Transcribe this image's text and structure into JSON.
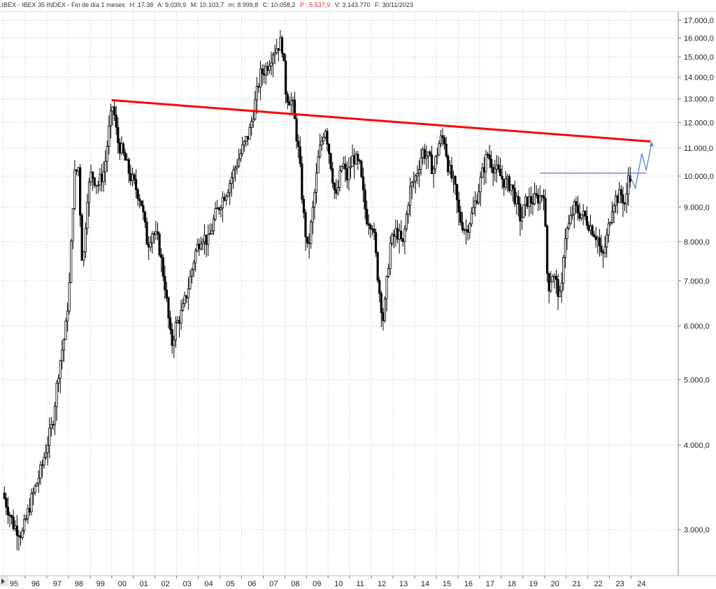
{
  "header": {
    "symbol": ".IBEX - IBEX 35 INDEX - Fin de día 1 meses",
    "hora": "H: 17:38",
    "apertura": "A: 9.039,9",
    "maximo": "M: 10.103,7",
    "minimo": "m: 8.999,8",
    "cierre": "C: 10.058,2",
    "p": "P : 5.537,9",
    "volumen": "V: 3.143.770",
    "fecha": "F: 30/11/2023"
  },
  "colors": {
    "grid": "#bdbdbd",
    "candle": "#000000",
    "trendline": "#ff0000",
    "resistance": "#3344cc",
    "projection": "#5588cc",
    "p_value": "#e03030"
  },
  "chart_data": {
    "type": "candlestick",
    "title": ".IBEX - IBEX 35 INDEX - Fin de día 1 meses",
    "scale": "log",
    "ylim": [
      2700,
      17300
    ],
    "y_ticks": [
      {
        "v": 3000,
        "label": "3.000,0"
      },
      {
        "v": 4000,
        "label": "4.000,0"
      },
      {
        "v": 5000,
        "label": "5.000,0"
      },
      {
        "v": 6000,
        "label": "6.000,0"
      },
      {
        "v": 7000,
        "label": "7.000,0"
      },
      {
        "v": 8000,
        "label": "8.000,0"
      },
      {
        "v": 9000,
        "label": "9.000,0"
      },
      {
        "v": 10000,
        "label": "10.000,0"
      },
      {
        "v": 11000,
        "label": "11.000,0"
      },
      {
        "v": 12000,
        "label": "12.000,0"
      },
      {
        "v": 13000,
        "label": "13.000,0"
      },
      {
        "v": 14000,
        "label": "14.000,0"
      },
      {
        "v": 15000,
        "label": "15.000,0"
      },
      {
        "v": 16000,
        "label": "16.000,0"
      },
      {
        "v": 17000,
        "label": "17.000,0"
      }
    ],
    "x_labels": [
      "95",
      "96",
      "97",
      "98",
      "99",
      "00",
      "01",
      "02",
      "03",
      "04",
      "05",
      "06",
      "07",
      "08",
      "09",
      "10",
      "11",
      "12",
      "13",
      "14",
      "15",
      "16",
      "17",
      "18",
      "19",
      "20",
      "21",
      "22",
      "23",
      "24"
    ],
    "x_start_year": 1995,
    "x_end_year": 2025,
    "grid": true,
    "series_path": [
      [
        1995.0,
        3400
      ],
      [
        1995.5,
        3050
      ],
      [
        1995.9,
        2950
      ],
      [
        1996.3,
        3300
      ],
      [
        1996.8,
        3700
      ],
      [
        1997.0,
        3950
      ],
      [
        1997.3,
        4300
      ],
      [
        1997.6,
        5200
      ],
      [
        1997.9,
        5900
      ],
      [
        1998.1,
        7000
      ],
      [
        1998.3,
        10000
      ],
      [
        1998.5,
        10300
      ],
      [
        1998.7,
        7200
      ],
      [
        1998.9,
        9300
      ],
      [
        1999.1,
        10100
      ],
      [
        1999.4,
        9700
      ],
      [
        1999.7,
        10200
      ],
      [
        1999.9,
        11600
      ],
      [
        2000.1,
        12800
      ],
      [
        2000.3,
        11300
      ],
      [
        2000.6,
        10700
      ],
      [
        2000.9,
        10000
      ],
      [
        2001.1,
        9700
      ],
      [
        2001.4,
        9200
      ],
      [
        2001.7,
        7900
      ],
      [
        2001.9,
        8300
      ],
      [
        2002.2,
        8000
      ],
      [
        2002.5,
        6900
      ],
      [
        2002.8,
        5600
      ],
      [
        2003.0,
        6000
      ],
      [
        2003.3,
        6300
      ],
      [
        2003.6,
        6900
      ],
      [
        2003.9,
        7700
      ],
      [
        2004.2,
        8200
      ],
      [
        2004.5,
        8000
      ],
      [
        2004.8,
        8700
      ],
      [
        2005.1,
        9200
      ],
      [
        2005.4,
        9600
      ],
      [
        2005.8,
        10400
      ],
      [
        2006.1,
        11000
      ],
      [
        2006.4,
        11600
      ],
      [
        2006.7,
        13000
      ],
      [
        2006.9,
        14100
      ],
      [
        2007.2,
        14500
      ],
      [
        2007.5,
        15300
      ],
      [
        2007.8,
        15700
      ],
      [
        2007.9,
        15800
      ],
      [
        2008.1,
        13200
      ],
      [
        2008.4,
        12800
      ],
      [
        2008.7,
        10700
      ],
      [
        2008.9,
        8800
      ],
      [
        2009.1,
        7700
      ],
      [
        2009.3,
        8700
      ],
      [
        2009.6,
        10700
      ],
      [
        2009.9,
        11900
      ],
      [
        2010.1,
        10800
      ],
      [
        2010.4,
        9200
      ],
      [
        2010.7,
        10500
      ],
      [
        2010.9,
        9900
      ],
      [
        2011.2,
        10700
      ],
      [
        2011.5,
        10300
      ],
      [
        2011.8,
        8700
      ],
      [
        2012.1,
        8500
      ],
      [
        2012.4,
        6800
      ],
      [
        2012.6,
        6100
      ],
      [
        2012.9,
        7900
      ],
      [
        2013.2,
        8300
      ],
      [
        2013.5,
        7900
      ],
      [
        2013.8,
        9500
      ],
      [
        2014.1,
        10000
      ],
      [
        2014.4,
        10900
      ],
      [
        2014.7,
        10600
      ],
      [
        2014.9,
        10200
      ],
      [
        2015.2,
        11300
      ],
      [
        2015.4,
        11400
      ],
      [
        2015.6,
        10300
      ],
      [
        2015.9,
        9600
      ],
      [
        2016.1,
        8700
      ],
      [
        2016.4,
        8300
      ],
      [
        2016.7,
        8800
      ],
      [
        2016.9,
        9300
      ],
      [
        2017.2,
        10200
      ],
      [
        2017.4,
        10800
      ],
      [
        2017.7,
        10300
      ],
      [
        2017.9,
        10100
      ],
      [
        2018.2,
        9800
      ],
      [
        2018.5,
        9700
      ],
      [
        2018.8,
        9000
      ],
      [
        2018.95,
        8600
      ],
      [
        2019.2,
        9200
      ],
      [
        2019.5,
        9200
      ],
      [
        2019.8,
        9300
      ],
      [
        2020.0,
        9500
      ],
      [
        2020.2,
        6800
      ],
      [
        2020.4,
        7200
      ],
      [
        2020.6,
        6900
      ],
      [
        2020.8,
        6500
      ],
      [
        2020.95,
        8100
      ],
      [
        2021.2,
        8500
      ],
      [
        2021.4,
        9000
      ],
      [
        2021.7,
        8800
      ],
      [
        2021.9,
        8700
      ],
      [
        2022.2,
        8400
      ],
      [
        2022.5,
        8100
      ],
      [
        2022.7,
        7500
      ],
      [
        2022.95,
        8200
      ],
      [
        2023.2,
        9200
      ],
      [
        2023.4,
        9300
      ],
      [
        2023.6,
        9400
      ],
      [
        2023.8,
        9000
      ],
      [
        2023.92,
        10058
      ]
    ],
    "annotations": {
      "trendline": [
        [
          2000.0,
          12950
        ],
        [
          2024.9,
          11250
        ]
      ],
      "resistance": [
        [
          2019.8,
          10100
        ],
        [
          2024.7,
          10100
        ]
      ],
      "projection": [
        [
          2023.92,
          10058
        ],
        [
          2024.2,
          9600
        ],
        [
          2024.5,
          10800
        ],
        [
          2024.7,
          10200
        ],
        [
          2024.95,
          11200
        ]
      ]
    }
  }
}
